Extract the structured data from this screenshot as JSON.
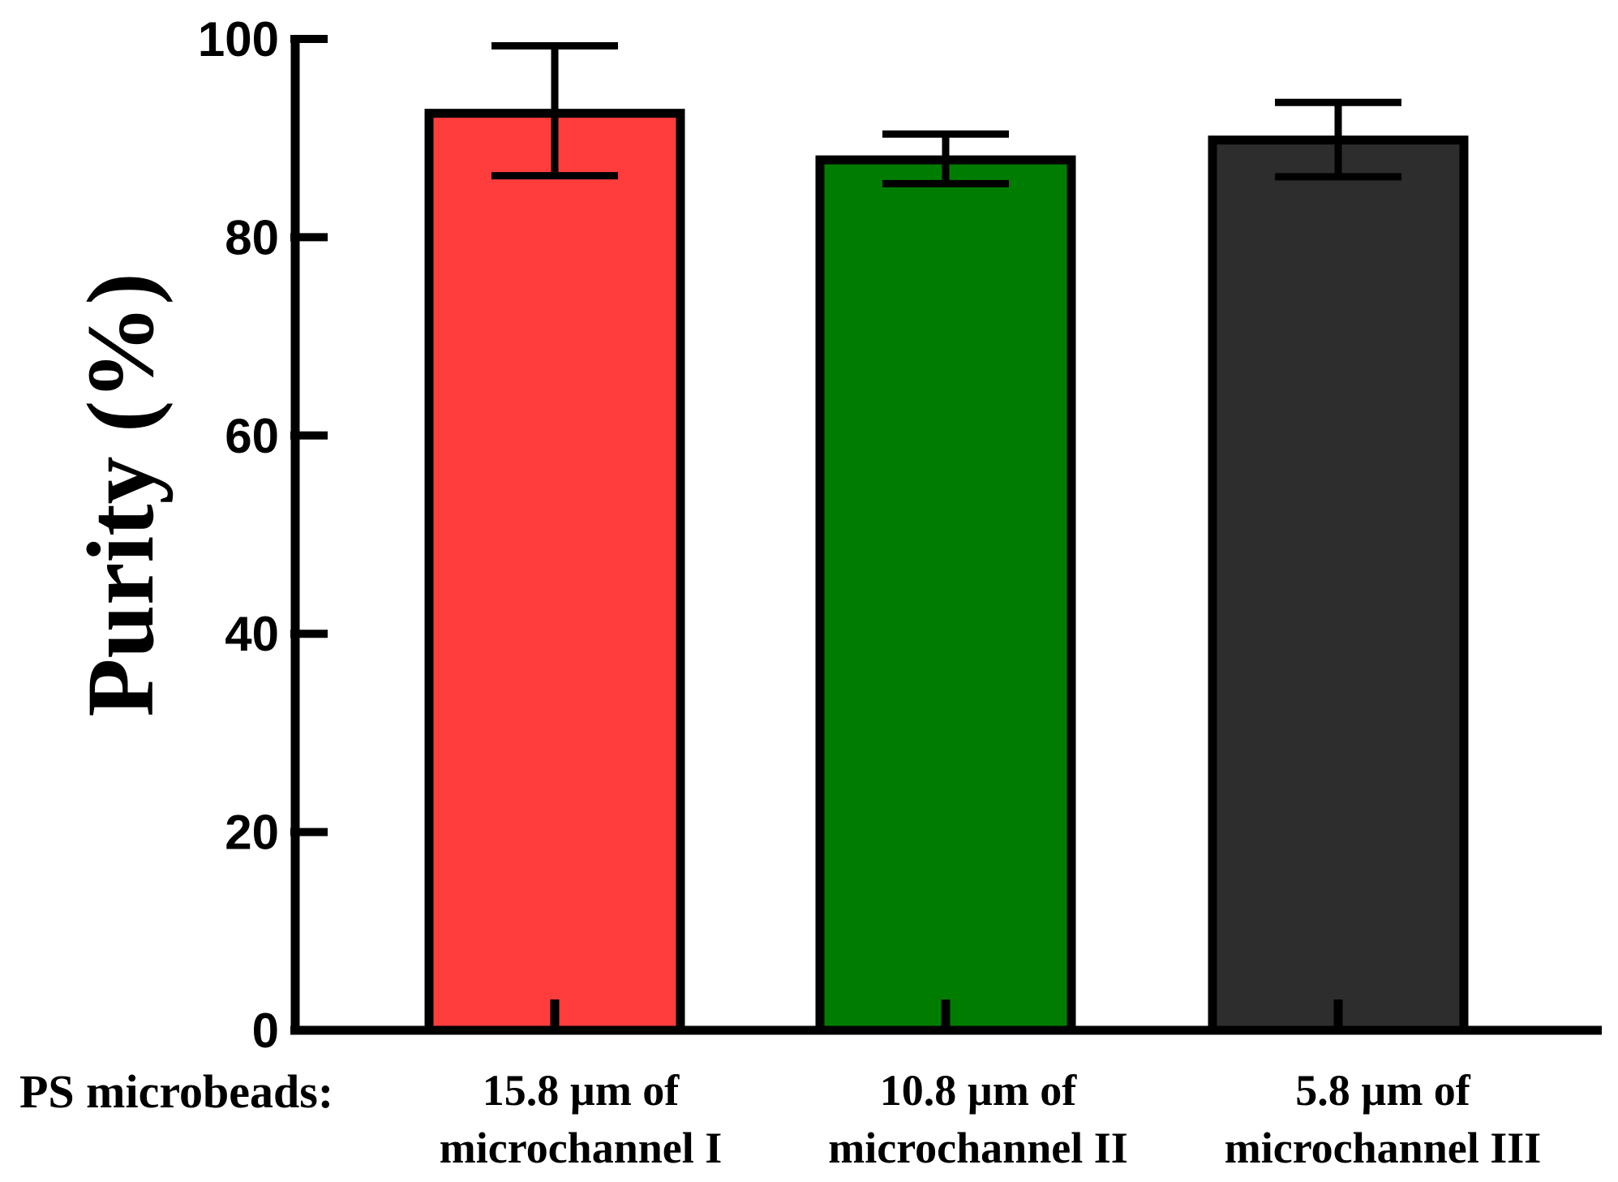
{
  "chart_data": {
    "type": "bar",
    "title": "",
    "xlabel": "",
    "ylabel": "Purity (%)",
    "row_label": "PS microbeads:",
    "ylim": [
      0,
      100
    ],
    "yticks": [
      "0",
      "20",
      "40",
      "60",
      "80",
      "100"
    ],
    "categories": [
      [
        "15.8 µm of",
        "microchannel I"
      ],
      [
        "10.8 µm of",
        "microchannel II"
      ],
      [
        "5.8 µm of",
        "microchannel III"
      ]
    ],
    "values": [
      92.5,
      87.8,
      89.8
    ],
    "error": [
      {
        "low": 86.2,
        "high": 99.3
      },
      {
        "low": 85.4,
        "high": 90.4
      },
      {
        "low": 86.1,
        "high": 93.6
      }
    ],
    "colors": [
      "#ff3d3d",
      "#007d00",
      "#2d2d2d"
    ],
    "edge_color": "#000000"
  }
}
